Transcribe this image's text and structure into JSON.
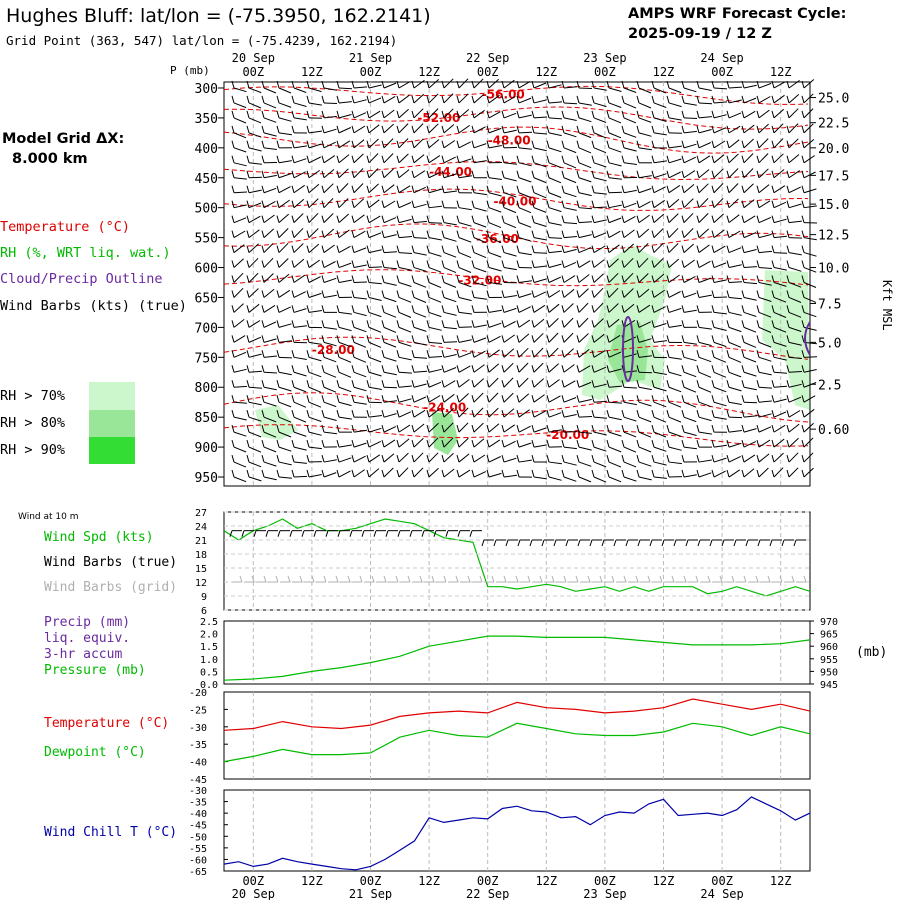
{
  "header": {
    "station_title": "Hughes Bluff:  lat/lon = (-75.3950, 162.2141)",
    "grid_point": "Grid Point (363, 547) lat/lon = (-75.4239, 162.2194)",
    "forecast_title": "AMPS WRF Forecast Cycle:",
    "forecast_cycle": "2025-09-19 / 12  Z",
    "model_grid_label": "Model Grid ΔX:",
    "model_grid_value": "8.000 km"
  },
  "colors": {
    "temperature": "#e00000",
    "rh": "#00bb00",
    "cloud": "#6a2aa0",
    "wind": "#000000",
    "wind_grid": "#b0b0b0",
    "precip": "#6a2aa0",
    "pressure": "#00bb00",
    "dewpoint": "#00bb00",
    "windchill": "#0000aa",
    "rh70": "#ccf7cc",
    "rh80": "#99e699",
    "rh90": "#33dd33"
  },
  "time_axis": {
    "top_dates": [
      "20 Sep",
      "21 Sep",
      "22 Sep",
      "23 Sep",
      "24 Sep"
    ],
    "top_hours": [
      "00Z",
      "12Z",
      "00Z",
      "12Z",
      "00Z",
      "12Z",
      "00Z",
      "12Z",
      "00Z",
      "12Z"
    ],
    "bottom_hours": [
      "00Z",
      "12Z",
      "00Z",
      "12Z",
      "00Z",
      "12Z",
      "00Z",
      "12Z",
      "00Z",
      "12Z"
    ],
    "bottom_dates": [
      "20 Sep",
      "21 Sep",
      "22 Sep",
      "23 Sep",
      "24 Sep"
    ]
  },
  "legend": {
    "temperature": "Temperature (°C)",
    "rh": "RH (%, WRT liq. wat.)",
    "cloud": "Cloud/Precip Outline",
    "wind": "Wind Barbs (kts) (true)",
    "rh70": "RH > 70%",
    "rh80": "RH > 80%",
    "rh90": "RH > 90%"
  },
  "chart_data": [
    {
      "type": "contour",
      "panel": "sounding",
      "y_axis_label": "P (mb)",
      "pressure_levels": [
        300,
        350,
        400,
        450,
        500,
        550,
        600,
        650,
        700,
        750,
        800,
        850,
        900,
        950
      ],
      "right_axis_label": "Kft MSL",
      "height_ticks_kft": [
        "25.0",
        "22.5",
        "20.0",
        "17.5",
        "15.0",
        "12.5",
        "10.0",
        "7.5",
        "5.0",
        "2.5",
        "0.60"
      ],
      "height_ticks_mb": [
        316,
        358,
        400,
        446,
        494,
        545,
        600,
        660,
        725,
        795,
        870,
        954
      ],
      "temperature_contours": [
        {
          "label": "-56.00",
          "value": -56,
          "label_pos": [
            44,
            311
          ]
        },
        {
          "label": "-52.00",
          "value": -52,
          "label_pos": [
            33,
            350
          ]
        },
        {
          "label": "-48.00",
          "value": -48,
          "label_pos": [
            45,
            388
          ]
        },
        {
          "label": "-44.00",
          "value": -44,
          "label_pos": [
            35,
            440
          ]
        },
        {
          "label": "-40.00",
          "value": -40,
          "label_pos": [
            46,
            490
          ]
        },
        {
          "label": "-36.00",
          "value": -36,
          "label_pos": [
            43,
            552
          ]
        },
        {
          "label": "-32.00",
          "value": -32,
          "label_pos": [
            40,
            622
          ]
        },
        {
          "label": "-28.00",
          "value": -28,
          "label_pos": [
            15,
            738
          ]
        },
        {
          "label": "-24.00",
          "value": -24,
          "label_pos": [
            34,
            834
          ]
        },
        {
          "label": "-20.00",
          "value": -20,
          "label_pos": [
            55,
            880
          ]
        }
      ],
      "rh_thresholds": [
        "RH > 70%",
        "RH > 80%",
        "RH > 90%"
      ],
      "time_range_hours": [
        -6,
        114
      ]
    },
    {
      "type": "line",
      "panel": "wind",
      "title": "Wind at 10 m",
      "ylabel_series": [
        "Wind Spd (kts)",
        "Wind Barbs (true)",
        "Wind Barbs (grid)"
      ],
      "y_ticks": [
        27,
        24,
        21,
        18,
        15,
        12,
        9,
        6
      ],
      "ylim": [
        6,
        27
      ],
      "series": [
        {
          "name": "Wind Spd (kts)",
          "x": [
            -6,
            -3,
            0,
            3,
            6,
            9,
            12,
            15,
            18,
            21,
            24,
            27,
            30,
            33,
            36,
            39,
            42,
            45,
            48,
            51,
            54,
            57,
            60,
            63,
            66,
            69,
            72,
            75,
            78,
            81,
            84,
            87,
            90,
            93,
            96,
            99,
            102,
            105,
            108,
            111,
            114
          ],
          "y": [
            23,
            21,
            23,
            24,
            25.5,
            23.5,
            24.5,
            23,
            23,
            23.5,
            24.5,
            25.5,
            25,
            24.5,
            23,
            21.5,
            21,
            20.5,
            11,
            11,
            10.5,
            11,
            11.5,
            11,
            10,
            10.5,
            11,
            10,
            11,
            10,
            11,
            11,
            11,
            9.5,
            10,
            11,
            10,
            9,
            10,
            11,
            10
          ]
        }
      ]
    },
    {
      "type": "line",
      "panel": "precip_pressure",
      "ylabel_series": [
        "Precip (mm)",
        "liq. equiv.",
        "3-hr accum",
        "Pressure (mb)"
      ],
      "left_ticks": [
        "2.5",
        "2.0",
        "1.5",
        "1.0",
        "0.5",
        "0.0"
      ],
      "left_ylim": [
        0,
        2.5
      ],
      "right_ticks": [
        "970",
        "965",
        "960",
        "955",
        "950",
        "945"
      ],
      "right_ylim": [
        945,
        970
      ],
      "right_axis_unit": "(mb)",
      "series": [
        {
          "name": "Pressure (mb)",
          "x": [
            -6,
            0,
            6,
            12,
            18,
            24,
            30,
            36,
            42,
            48,
            54,
            60,
            66,
            72,
            78,
            84,
            90,
            96,
            102,
            108,
            114
          ],
          "y": [
            946.5,
            947,
            948,
            950,
            951.5,
            953.5,
            956,
            960,
            962,
            964,
            964,
            963.5,
            963.5,
            963.5,
            962.5,
            961.5,
            960.5,
            960.5,
            960.5,
            961,
            962.5
          ]
        }
      ]
    },
    {
      "type": "line",
      "panel": "temperature",
      "ylabel_series": [
        "Temperature (°C)",
        "Dewpoint (°C)"
      ],
      "y_ticks": [
        "-20",
        "-25",
        "-30",
        "-35",
        "-40",
        "-45"
      ],
      "ylim": [
        -45,
        -20
      ],
      "series": [
        {
          "name": "Temperature (°C)",
          "x": [
            -6,
            0,
            6,
            12,
            18,
            24,
            30,
            36,
            42,
            48,
            54,
            60,
            66,
            72,
            78,
            84,
            90,
            96,
            102,
            108,
            114
          ],
          "y": [
            -31,
            -30.5,
            -28.5,
            -30,
            -30.5,
            -29.5,
            -27,
            -26,
            -25.5,
            -26,
            -23,
            -24.5,
            -25,
            -26,
            -25.5,
            -24.5,
            -22,
            -23.5,
            -25,
            -23.5,
            -25.5
          ]
        },
        {
          "name": "Dewpoint (°C)",
          "x": [
            -6,
            0,
            6,
            12,
            18,
            24,
            30,
            36,
            42,
            48,
            54,
            60,
            66,
            72,
            78,
            84,
            90,
            96,
            102,
            108,
            114
          ],
          "y": [
            -40,
            -38.5,
            -36.5,
            -38,
            -38,
            -37.5,
            -33,
            -31,
            -32.5,
            -33,
            -29,
            -30.5,
            -32,
            -32.5,
            -32.5,
            -31.5,
            -29,
            -30,
            -32.5,
            -30,
            -32
          ]
        }
      ]
    },
    {
      "type": "line",
      "panel": "windchill",
      "ylabel_series": [
        "Wind Chill T (°C)"
      ],
      "y_ticks": [
        "-30",
        "-35",
        "-40",
        "-45",
        "-50",
        "-55",
        "-60",
        "-65"
      ],
      "ylim": [
        -65,
        -30
      ],
      "series": [
        {
          "name": "Wind Chill T (°C)",
          "x": [
            -6,
            -3,
            0,
            3,
            6,
            9,
            12,
            15,
            18,
            21,
            24,
            27,
            30,
            33,
            36,
            39,
            42,
            45,
            48,
            51,
            54,
            57,
            60,
            63,
            66,
            69,
            72,
            75,
            78,
            81,
            84,
            87,
            90,
            93,
            96,
            99,
            102,
            105,
            108,
            111,
            114
          ],
          "y": [
            -62,
            -61,
            -63,
            -62,
            -59.5,
            -61,
            -62,
            -63,
            -64,
            -64.5,
            -63,
            -60,
            -56,
            -52,
            -42,
            -44,
            -43,
            -42,
            -42.5,
            -38,
            -37,
            -39,
            -39.5,
            -42,
            -41.5,
            -45,
            -41,
            -39.5,
            -40,
            -36,
            -34,
            -41,
            -40.5,
            -40,
            -41,
            -38.5,
            -33,
            -36,
            -39,
            -43,
            -40
          ]
        }
      ]
    }
  ]
}
